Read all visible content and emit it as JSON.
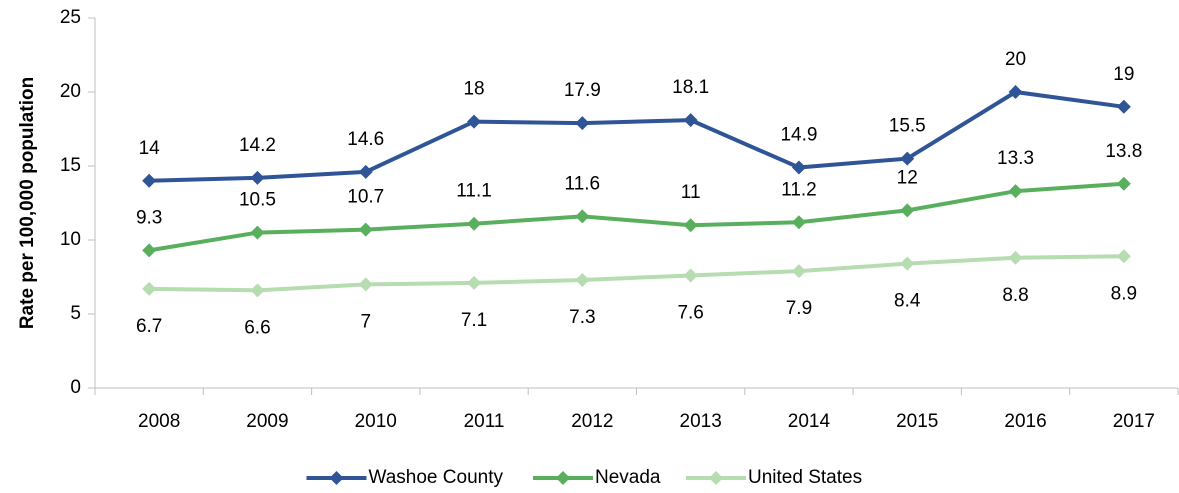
{
  "chart_data": {
    "type": "line",
    "y_label": "Rate per 100,000 population",
    "categories": [
      "2008",
      "2009",
      "2010",
      "2011",
      "2012",
      "2013",
      "2014",
      "2015",
      "2016",
      "2017"
    ],
    "series": [
      {
        "name": "Washoe County",
        "color": "#2f5597",
        "values": [
          14,
          14.2,
          14.6,
          18,
          17.9,
          18.1,
          14.9,
          15.5,
          20,
          19
        ]
      },
      {
        "name": "Nevada",
        "color": "#5aaf5f",
        "values": [
          9.3,
          10.5,
          10.7,
          11.1,
          11.6,
          11,
          11.2,
          12,
          13.3,
          13.8
        ]
      },
      {
        "name": "United States",
        "color": "#b7dcb1",
        "values": [
          6.7,
          6.6,
          7,
          7.1,
          7.3,
          7.6,
          7.9,
          8.4,
          8.8,
          8.9
        ]
      }
    ],
    "ylim": [
      0,
      25
    ],
    "yticks": [
      0,
      5,
      10,
      15,
      20,
      25
    ],
    "grid": false,
    "legend": "bottom"
  }
}
